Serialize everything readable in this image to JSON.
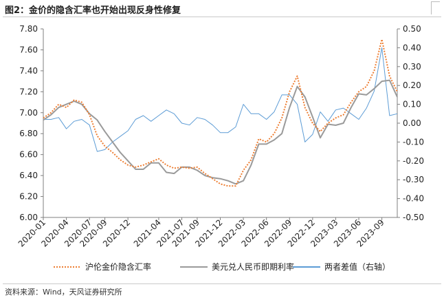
{
  "figure": {
    "title": "图2：金价的隐含汇率也开始出现反身性修复",
    "source": "资料来源：Wind，天风证券研究所"
  },
  "chart_data": {
    "type": "line",
    "x": [
      "2020-01",
      "2020-02",
      "2020-03",
      "2020-04",
      "2020-05",
      "2020-06",
      "2020-07",
      "2020-08",
      "2020-09",
      "2020-10",
      "2020-11",
      "2020-12",
      "2021-01",
      "2021-02",
      "2021-03",
      "2021-04",
      "2021-05",
      "2021-06",
      "2021-07",
      "2021-08",
      "2021-09",
      "2021-10",
      "2021-11",
      "2021-12",
      "2022-01",
      "2022-02",
      "2022-03",
      "2022-04",
      "2022-05",
      "2022-06",
      "2022-07",
      "2022-08",
      "2022-09",
      "2022-10",
      "2022-11",
      "2022-12",
      "2023-01",
      "2023-02",
      "2023-03",
      "2023-04",
      "2023-05",
      "2023-06",
      "2023-07",
      "2023-08",
      "2023-09",
      "2023-10",
      "2023-11"
    ],
    "x_tick_labels": [
      "2020-01",
      "2020-04",
      "2020-07",
      "2020-09",
      "2020-12",
      "2021-04",
      "2021-07",
      "2021-09",
      "2021-12",
      "2022-03",
      "2022-06",
      "2022-09",
      "2022-12",
      "2023-03",
      "2023-06",
      "2023-09"
    ],
    "series": [
      {
        "name": "沪伦金价隐含汇率",
        "axis": "left",
        "color": "#ED7D31",
        "style": "dotted",
        "values": [
          6.95,
          7.0,
          7.08,
          7.05,
          7.12,
          7.1,
          6.98,
          6.78,
          6.68,
          6.62,
          6.55,
          6.5,
          6.48,
          6.5,
          6.53,
          6.56,
          6.5,
          6.47,
          6.48,
          6.47,
          6.48,
          6.42,
          6.37,
          6.32,
          6.3,
          6.3,
          6.45,
          6.55,
          6.75,
          6.72,
          6.8,
          6.95,
          7.2,
          7.35,
          7.05,
          6.9,
          6.82,
          6.9,
          6.95,
          6.98,
          7.1,
          7.2,
          7.25,
          7.4,
          7.7,
          7.35,
          7.2
        ]
      },
      {
        "name": "美元兑人民币即期利率",
        "axis": "left",
        "color": "#9A9A9A",
        "style": "solid",
        "values": [
          6.93,
          6.98,
          7.05,
          7.08,
          7.11,
          7.08,
          6.99,
          6.93,
          6.82,
          6.72,
          6.62,
          6.54,
          6.46,
          6.46,
          6.52,
          6.52,
          6.43,
          6.42,
          6.48,
          6.48,
          6.45,
          6.4,
          6.38,
          6.37,
          6.35,
          6.32,
          6.35,
          6.5,
          6.7,
          6.7,
          6.74,
          6.8,
          7.05,
          7.25,
          7.15,
          6.96,
          6.76,
          6.89,
          6.88,
          6.9,
          7.05,
          7.18,
          7.17,
          7.23,
          7.3,
          7.31,
          7.15
        ]
      },
      {
        "name": "两者差值（右轴）",
        "axis": "right",
        "color": "#5B9BD5",
        "style": "solid",
        "values": [
          0.02,
          0.02,
          0.03,
          -0.03,
          0.01,
          0.02,
          -0.01,
          -0.15,
          -0.14,
          -0.1,
          -0.07,
          -0.04,
          0.02,
          0.04,
          0.01,
          0.04,
          0.07,
          0.05,
          0.0,
          -0.01,
          0.03,
          0.02,
          -0.01,
          -0.05,
          -0.05,
          -0.02,
          0.1,
          0.05,
          0.05,
          0.02,
          0.06,
          0.15,
          0.15,
          0.1,
          -0.1,
          -0.06,
          0.06,
          0.01,
          0.07,
          0.08,
          0.05,
          0.02,
          0.08,
          0.17,
          0.4,
          0.04,
          0.05
        ]
      }
    ],
    "y_left": {
      "min": 6.0,
      "max": 7.8,
      "step": 0.2,
      "ticks": [
        "6.00",
        "6.20",
        "6.40",
        "6.60",
        "6.80",
        "7.00",
        "7.20",
        "7.40",
        "7.60",
        "7.80"
      ]
    },
    "y_right": {
      "min": -0.5,
      "max": 0.5,
      "step": 0.1,
      "ticks": [
        "-0.50",
        "-0.40",
        "-0.30",
        "-0.20",
        "-0.10",
        "0.00",
        "0.10",
        "0.20",
        "0.30",
        "0.40",
        "0.50"
      ]
    },
    "grid": false,
    "legend_position": "bottom"
  }
}
